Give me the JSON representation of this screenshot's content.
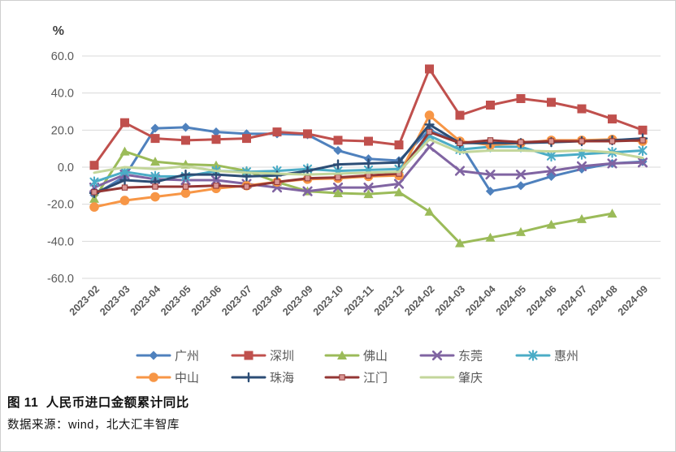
{
  "caption": {
    "title": "图 11  人民币进口金额累计同比",
    "source": "数据来源：wind，北大汇丰智库"
  },
  "chart_data": {
    "type": "line",
    "title": "图 11  人民币进口金额累计同比",
    "unit": "%",
    "grid": true,
    "legend_position": "bottom",
    "x_label_rotation": -45,
    "ylim": [
      -60,
      60
    ],
    "y_ticks": [
      {
        "label": "60.0",
        "value": 60
      },
      {
        "label": "40.0",
        "value": 40
      },
      {
        "label": "20.0",
        "value": 20
      },
      {
        "label": "0.0",
        "value": 0
      },
      {
        "label": "-20.0",
        "value": -20
      },
      {
        "label": "-40.0",
        "value": -40
      },
      {
        "label": "-60.0",
        "value": -60
      }
    ],
    "categories": [
      "2023-02",
      "2023-03",
      "2023-04",
      "2023-05",
      "2023-06",
      "2023-07",
      "2023-08",
      "2023-09",
      "2023-10",
      "2023-11",
      "2023-12",
      "2024-02",
      "2024-03",
      "2024-04",
      "2024-05",
      "2024-06",
      "2024-07",
      "2024-08",
      "2024-09"
    ],
    "legend_rows": [
      5,
      4
    ],
    "series": [
      {
        "name": "广州",
        "color": "#4F81BD",
        "marker": "diamond",
        "values": [
          -15,
          -5,
          21,
          21.5,
          19,
          18,
          18,
          17.5,
          9,
          4.5,
          3.5,
          20,
          13,
          -13,
          -10,
          -5,
          -1,
          2,
          3
        ]
      },
      {
        "name": "深圳",
        "color": "#C0504D",
        "marker": "square",
        "values": [
          1,
          24,
          15.5,
          14.5,
          15,
          15.5,
          19,
          18,
          14.5,
          14,
          12,
          53,
          28,
          33.5,
          37,
          35,
          31.5,
          26,
          20
        ]
      },
      {
        "name": "佛山",
        "color": "#9BBB59",
        "marker": "triangle",
        "values": [
          -17,
          8.5,
          3,
          1.5,
          1,
          -2,
          -8,
          -13,
          -14,
          -14.5,
          -13.5,
          -24,
          -41,
          -38,
          -35,
          -31,
          -28,
          -25,
          null
        ]
      },
      {
        "name": "东莞",
        "color": "#8064A2",
        "marker": "x",
        "values": [
          -11,
          -4,
          -6.5,
          -7,
          -7,
          -9,
          -11,
          -13,
          -11,
          -11,
          -9,
          11,
          -2,
          -4,
          -4,
          -2,
          0.5,
          2,
          2.5
        ]
      },
      {
        "name": "惠州",
        "color": "#4BACC6",
        "marker": "asterisk",
        "values": [
          -8,
          -2.5,
          -5,
          -5,
          -2,
          -2.5,
          -2,
          -1,
          -2,
          -1.5,
          -1,
          17,
          9.5,
          11,
          11,
          6,
          7,
          8,
          9
        ]
      },
      {
        "name": "中山",
        "color": "#F79646",
        "marker": "circle",
        "values": [
          -21.5,
          -18,
          -16,
          -14,
          -11.5,
          -10,
          -8,
          -6.5,
          -6,
          -5,
          -4.5,
          28,
          14,
          12,
          13,
          14.5,
          14.5,
          15,
          14
        ]
      },
      {
        "name": "珠海",
        "color": "#2C4D75",
        "marker": "plus",
        "values": [
          -14,
          -7,
          -8,
          -4,
          -4,
          -5,
          -4.5,
          -2,
          1.5,
          2,
          2.5,
          23,
          13,
          13,
          13,
          13.5,
          14,
          14.5,
          15.5
        ]
      },
      {
        "name": "江门",
        "color": "#943634",
        "marker": "small-square",
        "marker_fill": "#D99694",
        "values": [
          -13.5,
          -11,
          -10.5,
          -10.5,
          -10,
          -10.5,
          -8,
          -6,
          -5.5,
          -4.5,
          -3.5,
          19,
          13,
          14.5,
          13.5,
          14,
          14,
          14,
          14.5
        ]
      },
      {
        "name": "肇庆",
        "color": "#C3D69B",
        "marker": "none",
        "values": [
          -3,
          0,
          -1,
          0.5,
          -2,
          -3,
          -3.5,
          -4,
          -3.5,
          -3,
          -2.5,
          15,
          8,
          9,
          9,
          8.5,
          9,
          8,
          5
        ]
      }
    ]
  }
}
